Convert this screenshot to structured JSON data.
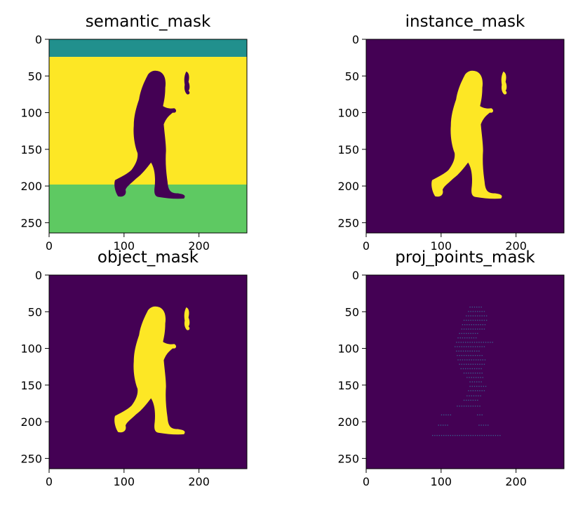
{
  "colors": {
    "background": "#440154",
    "person": "#fde725",
    "sky": "#21908d",
    "ground": "#5ec962",
    "points": "#3b5c8c"
  },
  "chart_data": [
    {
      "type": "heatmap",
      "title": "semantic_mask",
      "xlim": [
        0,
        264
      ],
      "ylim": [
        264,
        0
      ],
      "xticks": [
        0,
        100,
        200
      ],
      "yticks": [
        0,
        50,
        100,
        150,
        200,
        250
      ],
      "regions": [
        {
          "label_value": 1,
          "color": "sky",
          "y_range": [
            0,
            24
          ]
        },
        {
          "label_value": 3,
          "color": "person",
          "y_range": [
            24,
            198
          ]
        },
        {
          "label_value": 2,
          "color": "ground",
          "y_range": [
            198,
            264
          ]
        },
        {
          "label_value": 0,
          "color": "background",
          "shape": "person-silhouette"
        }
      ]
    },
    {
      "type": "heatmap",
      "title": "instance_mask",
      "xlim": [
        0,
        264
      ],
      "ylim": [
        264,
        0
      ],
      "xticks": [
        0,
        100,
        200
      ],
      "yticks": [
        0,
        50,
        100,
        150,
        200,
        250
      ],
      "regions": [
        {
          "label_value": 0,
          "color": "background"
        },
        {
          "label_value": 1,
          "color": "person",
          "shape": "person-silhouette"
        }
      ]
    },
    {
      "type": "heatmap",
      "title": "object_mask",
      "xlim": [
        0,
        264
      ],
      "ylim": [
        264,
        0
      ],
      "xticks": [
        0,
        100,
        200
      ],
      "yticks": [
        0,
        50,
        100,
        150,
        200,
        250
      ],
      "regions": [
        {
          "label_value": 0,
          "color": "background"
        },
        {
          "label_value": 1,
          "color": "person",
          "shape": "person-silhouette"
        }
      ]
    },
    {
      "type": "heatmap",
      "title": "proj_points_mask",
      "xlim": [
        0,
        264
      ],
      "ylim": [
        264,
        0
      ],
      "xticks": [
        0,
        100,
        200
      ],
      "yticks": [
        0,
        50,
        100,
        150,
        200,
        250
      ],
      "regions": [
        {
          "label_value": 0,
          "color": "background"
        },
        {
          "label_value": 1,
          "color": "points",
          "shape": "sparse-projected-points"
        }
      ],
      "point_rows": [
        {
          "y": 43,
          "x": [
            138,
            154
          ]
        },
        {
          "y": 49,
          "x": [
            136,
            158
          ]
        },
        {
          "y": 55,
          "x": [
            133,
            160
          ]
        },
        {
          "y": 61,
          "x": [
            130,
            160
          ]
        },
        {
          "y": 67,
          "x": [
            128,
            160
          ]
        },
        {
          "y": 73,
          "x": [
            127,
            158
          ]
        },
        {
          "y": 79,
          "x": [
            124,
            150
          ]
        },
        {
          "y": 85,
          "x": [
            122,
            148
          ]
        },
        {
          "y": 91,
          "x": [
            120,
            170
          ]
        },
        {
          "y": 97,
          "x": [
            118,
            158
          ]
        },
        {
          "y": 103,
          "x": [
            120,
            152
          ]
        },
        {
          "y": 109,
          "x": [
            121,
            156
          ]
        },
        {
          "y": 115,
          "x": [
            122,
            158
          ]
        },
        {
          "y": 121,
          "x": [
            124,
            157
          ]
        },
        {
          "y": 127,
          "x": [
            126,
            154
          ]
        },
        {
          "y": 133,
          "x": [
            130,
            155
          ]
        },
        {
          "y": 139,
          "x": [
            134,
            156
          ]
        },
        {
          "y": 145,
          "x": [
            138,
            155
          ]
        },
        {
          "y": 151,
          "x": [
            138,
            160
          ]
        },
        {
          "y": 157,
          "x": [
            136,
            158
          ]
        },
        {
          "y": 164,
          "x": [
            134,
            152
          ]
        },
        {
          "y": 170,
          "x": [
            130,
            150
          ]
        },
        {
          "y": 178,
          "x": [
            121,
            153
          ]
        },
        {
          "y": 190,
          "x": [
            100,
            112
          ]
        },
        {
          "y": 190,
          "x": [
            148,
            156
          ]
        },
        {
          "y": 204,
          "x": [
            96,
            108
          ]
        },
        {
          "y": 204,
          "x": [
            150,
            164
          ]
        },
        {
          "y": 218,
          "x": [
            88,
            180
          ]
        }
      ]
    }
  ]
}
